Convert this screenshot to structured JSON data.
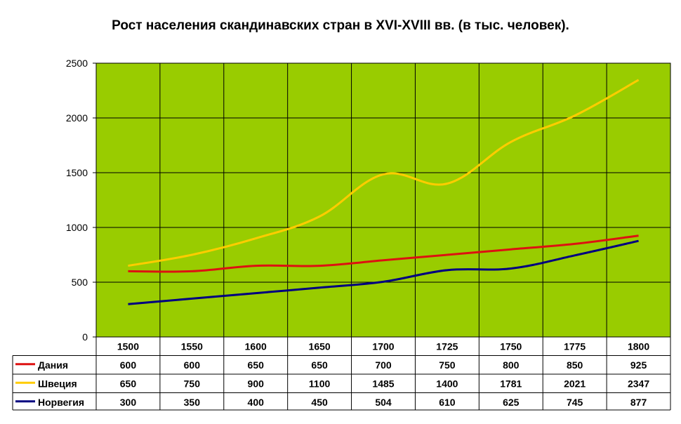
{
  "chart_data": {
    "type": "line",
    "title": "Рост населения скандинавских стран в XVI-XVIII вв. (в тыс. человек).",
    "categories": [
      "1500",
      "1550",
      "1600",
      "1650",
      "1700",
      "1725",
      "1750",
      "1775",
      "1800"
    ],
    "ylim": [
      0,
      2500
    ],
    "yticks": [
      0,
      500,
      1000,
      1500,
      2000,
      2500
    ],
    "grid": true,
    "legend": "data-table",
    "plot_background": "#99CC00",
    "series": [
      {
        "name": "Дания",
        "color": "#DD1111",
        "values": [
          600,
          600,
          650,
          650,
          700,
          750,
          800,
          850,
          925
        ]
      },
      {
        "name": "Швеция",
        "color": "#FFCC00",
        "values": [
          650,
          750,
          900,
          1100,
          1485,
          1400,
          1781,
          2021,
          2347
        ]
      },
      {
        "name": "Норвегия",
        "color": "#000080",
        "values": [
          300,
          350,
          400,
          450,
          504,
          610,
          625,
          745,
          877
        ]
      }
    ]
  }
}
